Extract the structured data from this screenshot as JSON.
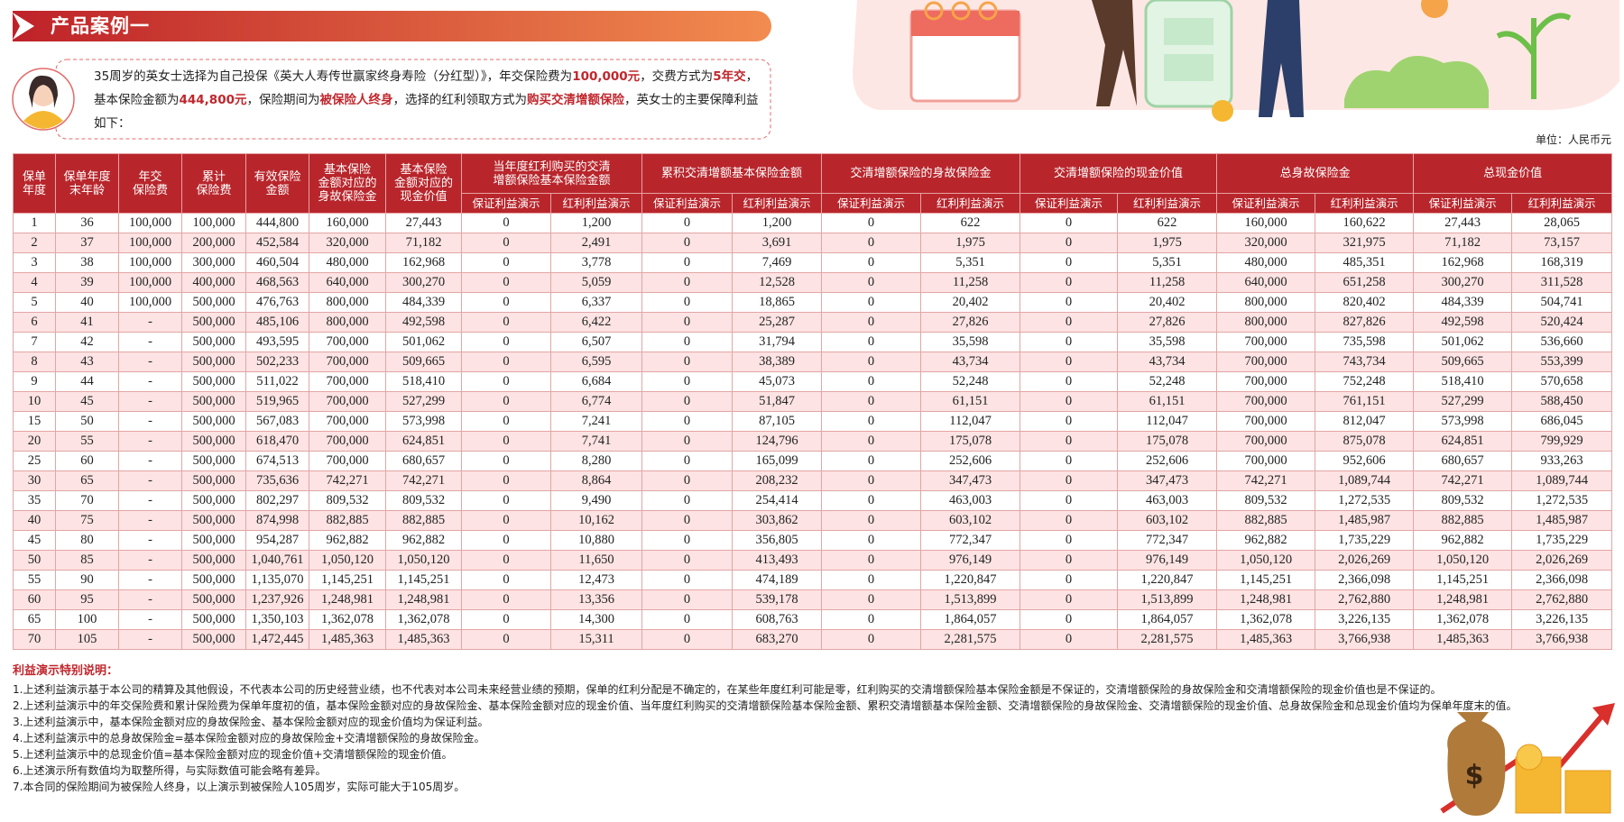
{
  "header": {
    "title": "产品案例一"
  },
  "intro": [
    "35周岁的英女士选择为自己投保《英大人寿传世赢家终身寿险（分红型）》，年交保险费为",
    "100,000元",
    "，交费方式为",
    "5年交",
    "，基本保险金额为",
    "444,800元",
    "，保险期间为",
    "被保险人终身",
    "，选择的红利领取方式为",
    "购买交清增额保险",
    "，英女士的主要保障利益如下："
  ],
  "unit": "单位：人民币元",
  "table": {
    "top_headers": [
      "保单\n年度",
      "保单年度\n末年龄",
      "年交\n保险费",
      "累计\n保险费",
      "有效保险\n金额",
      "基本保险\n金额对应的\n身故保险金",
      "基本保险\n金额对应的\n现金价值"
    ],
    "group_headers": [
      "当年度红利购买的交清\n增额保险基本保险金额",
      "累积交清增额基本保险金额",
      "交清增额保险的身故保险金",
      "交清增额保险的现金价值",
      "总身故保险金",
      "总现金价值"
    ],
    "sub_headers": [
      "保证利益演示",
      "红利利益演示",
      "保证利益演示",
      "红利利益演示",
      "保证利益演示",
      "红利利益演示",
      "保证利益演示",
      "红利利益演示",
      "保证利益演示",
      "红利利益演示",
      "保证利益演示",
      "红利利益演示"
    ],
    "rows": [
      [
        "1",
        "36",
        "100,000",
        "100,000",
        "444,800",
        "160,000",
        "27,443",
        "0",
        "1,200",
        "0",
        "1,200",
        "0",
        "622",
        "0",
        "622",
        "160,000",
        "160,622",
        "27,443",
        "28,065"
      ],
      [
        "2",
        "37",
        "100,000",
        "200,000",
        "452,584",
        "320,000",
        "71,182",
        "0",
        "2,491",
        "0",
        "3,691",
        "0",
        "1,975",
        "0",
        "1,975",
        "320,000",
        "321,975",
        "71,182",
        "73,157"
      ],
      [
        "3",
        "38",
        "100,000",
        "300,000",
        "460,504",
        "480,000",
        "162,968",
        "0",
        "3,778",
        "0",
        "7,469",
        "0",
        "5,351",
        "0",
        "5,351",
        "480,000",
        "485,351",
        "162,968",
        "168,319"
      ],
      [
        "4",
        "39",
        "100,000",
        "400,000",
        "468,563",
        "640,000",
        "300,270",
        "0",
        "5,059",
        "0",
        "12,528",
        "0",
        "11,258",
        "0",
        "11,258",
        "640,000",
        "651,258",
        "300,270",
        "311,528"
      ],
      [
        "5",
        "40",
        "100,000",
        "500,000",
        "476,763",
        "800,000",
        "484,339",
        "0",
        "6,337",
        "0",
        "18,865",
        "0",
        "20,402",
        "0",
        "20,402",
        "800,000",
        "820,402",
        "484,339",
        "504,741"
      ],
      [
        "6",
        "41",
        "-",
        "500,000",
        "485,106",
        "800,000",
        "492,598",
        "0",
        "6,422",
        "0",
        "25,287",
        "0",
        "27,826",
        "0",
        "27,826",
        "800,000",
        "827,826",
        "492,598",
        "520,424"
      ],
      [
        "7",
        "42",
        "-",
        "500,000",
        "493,595",
        "700,000",
        "501,062",
        "0",
        "6,507",
        "0",
        "31,794",
        "0",
        "35,598",
        "0",
        "35,598",
        "700,000",
        "735,598",
        "501,062",
        "536,660"
      ],
      [
        "8",
        "43",
        "-",
        "500,000",
        "502,233",
        "700,000",
        "509,665",
        "0",
        "6,595",
        "0",
        "38,389",
        "0",
        "43,734",
        "0",
        "43,734",
        "700,000",
        "743,734",
        "509,665",
        "553,399"
      ],
      [
        "9",
        "44",
        "-",
        "500,000",
        "511,022",
        "700,000",
        "518,410",
        "0",
        "6,684",
        "0",
        "45,073",
        "0",
        "52,248",
        "0",
        "52,248",
        "700,000",
        "752,248",
        "518,410",
        "570,658"
      ],
      [
        "10",
        "45",
        "-",
        "500,000",
        "519,965",
        "700,000",
        "527,299",
        "0",
        "6,774",
        "0",
        "51,847",
        "0",
        "61,151",
        "0",
        "61,151",
        "700,000",
        "761,151",
        "527,299",
        "588,450"
      ],
      [
        "15",
        "50",
        "-",
        "500,000",
        "567,083",
        "700,000",
        "573,998",
        "0",
        "7,241",
        "0",
        "87,105",
        "0",
        "112,047",
        "0",
        "112,047",
        "700,000",
        "812,047",
        "573,998",
        "686,045"
      ],
      [
        "20",
        "55",
        "-",
        "500,000",
        "618,470",
        "700,000",
        "624,851",
        "0",
        "7,741",
        "0",
        "124,796",
        "0",
        "175,078",
        "0",
        "175,078",
        "700,000",
        "875,078",
        "624,851",
        "799,929"
      ],
      [
        "25",
        "60",
        "-",
        "500,000",
        "674,513",
        "700,000",
        "680,657",
        "0",
        "8,280",
        "0",
        "165,099",
        "0",
        "252,606",
        "0",
        "252,606",
        "700,000",
        "952,606",
        "680,657",
        "933,263"
      ],
      [
        "30",
        "65",
        "-",
        "500,000",
        "735,636",
        "742,271",
        "742,271",
        "0",
        "8,864",
        "0",
        "208,232",
        "0",
        "347,473",
        "0",
        "347,473",
        "742,271",
        "1,089,744",
        "742,271",
        "1,089,744"
      ],
      [
        "35",
        "70",
        "-",
        "500,000",
        "802,297",
        "809,532",
        "809,532",
        "0",
        "9,490",
        "0",
        "254,414",
        "0",
        "463,003",
        "0",
        "463,003",
        "809,532",
        "1,272,535",
        "809,532",
        "1,272,535"
      ],
      [
        "40",
        "75",
        "-",
        "500,000",
        "874,998",
        "882,885",
        "882,885",
        "0",
        "10,162",
        "0",
        "303,862",
        "0",
        "603,102",
        "0",
        "603,102",
        "882,885",
        "1,485,987",
        "882,885",
        "1,485,987"
      ],
      [
        "45",
        "80",
        "-",
        "500,000",
        "954,287",
        "962,882",
        "962,882",
        "0",
        "10,880",
        "0",
        "356,805",
        "0",
        "772,347",
        "0",
        "772,347",
        "962,882",
        "1,735,229",
        "962,882",
        "1,735,229"
      ],
      [
        "50",
        "85",
        "-",
        "500,000",
        "1,040,761",
        "1,050,120",
        "1,050,120",
        "0",
        "11,650",
        "0",
        "413,493",
        "0",
        "976,149",
        "0",
        "976,149",
        "1,050,120",
        "2,026,269",
        "1,050,120",
        "2,026,269"
      ],
      [
        "55",
        "90",
        "-",
        "500,000",
        "1,135,070",
        "1,145,251",
        "1,145,251",
        "0",
        "12,473",
        "0",
        "474,189",
        "0",
        "1,220,847",
        "0",
        "1,220,847",
        "1,145,251",
        "2,366,098",
        "1,145,251",
        "2,366,098"
      ],
      [
        "60",
        "95",
        "-",
        "500,000",
        "1,237,926",
        "1,248,981",
        "1,248,981",
        "0",
        "13,356",
        "0",
        "539,178",
        "0",
        "1,513,899",
        "0",
        "1,513,899",
        "1,248,981",
        "2,762,880",
        "1,248,981",
        "2,762,880"
      ],
      [
        "65",
        "100",
        "-",
        "500,000",
        "1,350,103",
        "1,362,078",
        "1,362,078",
        "0",
        "14,300",
        "0",
        "608,763",
        "0",
        "1,864,057",
        "0",
        "1,864,057",
        "1,362,078",
        "3,226,135",
        "1,362,078",
        "3,226,135"
      ],
      [
        "70",
        "105",
        "-",
        "500,000",
        "1,472,445",
        "1,485,363",
        "1,485,363",
        "0",
        "15,311",
        "0",
        "683,270",
        "0",
        "2,281,575",
        "0",
        "2,281,575",
        "1,485,363",
        "3,766,938",
        "1,485,363",
        "3,766,938"
      ]
    ]
  },
  "notes": {
    "title": "利益演示特别说明：",
    "items": [
      "1.上述利益演示基于本公司的精算及其他假设，不代表本公司的历史经营业绩，也不代表对本公司未来经营业绩的预期，保单的红利分配是不确定的，在某些年度红利可能是零，红利购买的交清增额保险基本保险金额是不保证的，交清增额保险的身故保险金和交清增额保险的现金价值也是不保证的。",
      "2.上述利益演示中的年交保险费和累计保险费为保单年度初的值，基本保险金额对应的身故保险金、基本保险金额对应的现金价值、当年度红利购买的交清增额保险基本保险金额、累积交清增额基本保险金额、交清增额保险的身故保险金、交清增额保险的现金价值、总身故保险金和总现金价值均为保单年度末的值。",
      "3.上述利益演示中，基本保险金额对应的身故保险金、基本保险金额对应的现金价值均为保证利益。",
      "4.上述利益演示中的总身故保险金=基本保险金额对应的身故保险金+交清增额保险的身故保险金。",
      "5.上述利益演示中的总现金价值=基本保险金额对应的现金价值+交清增额保险的现金价值。",
      "6.上述演示所有数值均为取整所得，与实际数值可能会略有差异。",
      "7.本合同的保险期间为被保险人终身，以上演示到被保险人105周岁，实际可能大于105周岁。"
    ]
  }
}
